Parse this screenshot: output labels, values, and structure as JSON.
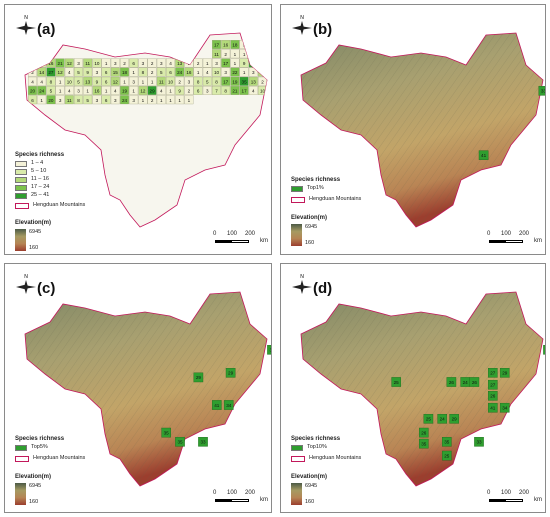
{
  "panels": [
    {
      "id": "a",
      "label": "(a)",
      "legend": {
        "title": "Species richness",
        "classes": [
          {
            "label": "1 – 4",
            "color": "#f4f2d8"
          },
          {
            "label": "5 – 10",
            "color": "#d9ebaa"
          },
          {
            "label": "11 – 16",
            "color": "#b3d97a"
          },
          {
            "label": "17 – 24",
            "color": "#7cc24c"
          },
          {
            "label": "25 – 41",
            "color": "#2f9e2f"
          }
        ]
      },
      "cell_values": [
        "17",
        "16",
        "18",
        "3",
        "1",
        "13",
        "11",
        "2",
        "1",
        "1",
        "16",
        "1",
        "5",
        "10",
        "16",
        "21",
        "12",
        "3",
        "11",
        "10",
        "1",
        "3",
        "2",
        "6",
        "3",
        "2",
        "3",
        "4",
        "13",
        "1",
        "2",
        "1",
        "3",
        "17",
        "1",
        "9",
        "25",
        "1",
        "2",
        "14",
        "27",
        "12",
        "4",
        "5",
        "9",
        "3",
        "6",
        "15",
        "18",
        "1",
        "8",
        "2",
        "5",
        "6",
        "24",
        "16",
        "1",
        "4",
        "10",
        "3",
        "22",
        "1",
        "3",
        "13",
        "4",
        "4",
        "8",
        "1",
        "10",
        "5",
        "13",
        "9",
        "6",
        "12",
        "1",
        "3",
        "1",
        "1",
        "11",
        "10",
        "2",
        "3",
        "8",
        "5",
        "8",
        "17",
        "19",
        "35",
        "13",
        "2",
        "20",
        "24",
        "5",
        "1",
        "4",
        "3",
        "1",
        "16",
        "1",
        "4",
        "19",
        "1",
        "12",
        "29",
        "4",
        "1",
        "9",
        "2",
        "6",
        "3",
        "7",
        "8",
        "21",
        "17",
        "4",
        "10",
        "6",
        "1",
        "20",
        "3",
        "11",
        "8",
        "5",
        "3",
        "6",
        "3",
        "24",
        "3",
        "1",
        "2",
        "1",
        "1",
        "1",
        "1"
      ]
    },
    {
      "id": "b",
      "label": "(b)",
      "legend": {
        "title": "Species richness",
        "classes": [
          {
            "label": "Top1%",
            "color": "#2f9e2f"
          }
        ]
      },
      "cells": [
        {
          "value": "33",
          "gx": 26.5,
          "gy": 6
        },
        {
          "value": "41",
          "gx": 20,
          "gy": 13
        }
      ]
    },
    {
      "id": "c",
      "label": "(c)",
      "legend": {
        "title": "Species richness",
        "classes": [
          {
            "label": "Top5%",
            "color": "#2f9e2f"
          }
        ]
      },
      "cells": [
        {
          "value": "32",
          "gx": 27,
          "gy": 6
        },
        {
          "value": "33",
          "gx": 28.3,
          "gy": 6
        },
        {
          "value": "29",
          "gx": 19,
          "gy": 9
        },
        {
          "value": "29",
          "gx": 22.5,
          "gy": 8.5
        },
        {
          "value": "41",
          "gx": 21,
          "gy": 12
        },
        {
          "value": "34",
          "gx": 22.3,
          "gy": 12
        },
        {
          "value": "35",
          "gx": 15.5,
          "gy": 15
        },
        {
          "value": "35",
          "gx": 17,
          "gy": 16
        },
        {
          "value": "33",
          "gx": 19.5,
          "gy": 16
        }
      ]
    },
    {
      "id": "d",
      "label": "(d)",
      "legend": {
        "title": "Species richness",
        "classes": [
          {
            "label": "Top10%",
            "color": "#2f9e2f"
          }
        ]
      },
      "cells": [
        {
          "value": "32",
          "gx": 27,
          "gy": 6
        },
        {
          "value": "33",
          "gx": 28.3,
          "gy": 6
        },
        {
          "value": "25",
          "gx": 10.5,
          "gy": 9.5
        },
        {
          "value": "26",
          "gx": 16.5,
          "gy": 9.5
        },
        {
          "value": "24",
          "gx": 18,
          "gy": 9.5
        },
        {
          "value": "26",
          "gx": 19,
          "gy": 9.5
        },
        {
          "value": "27",
          "gx": 21,
          "gy": 8.5
        },
        {
          "value": "29",
          "gx": 22.3,
          "gy": 8.5
        },
        {
          "value": "27",
          "gx": 21,
          "gy": 9.8
        },
        {
          "value": "26",
          "gx": 21,
          "gy": 11
        },
        {
          "value": "41",
          "gx": 21,
          "gy": 12.3
        },
        {
          "value": "34",
          "gx": 22.3,
          "gy": 12.3
        },
        {
          "value": "25",
          "gx": 14,
          "gy": 13.5
        },
        {
          "value": "24",
          "gx": 15.5,
          "gy": 13.5
        },
        {
          "value": "29",
          "gx": 16.8,
          "gy": 13.5
        },
        {
          "value": "26",
          "gx": 13.5,
          "gy": 15
        },
        {
          "value": "35",
          "gx": 13.5,
          "gy": 16.2
        },
        {
          "value": "35",
          "gx": 16,
          "gy": 16
        },
        {
          "value": "25",
          "gx": 16,
          "gy": 17.5
        },
        {
          "value": "33",
          "gx": 19.5,
          "gy": 16
        }
      ]
    }
  ],
  "common": {
    "north_label": "N",
    "boundary_label": "Hengduan Mountains",
    "elevation_title": "Elevation(m)",
    "elevation_high": "6945",
    "elevation_low": "160",
    "elevation_colors": [
      "#4c5a46",
      "#a59a62",
      "#b58454",
      "#9b3e2e"
    ],
    "boundary_color": "#c2185b",
    "scale_ticks": [
      "0",
      "100",
      "200"
    ],
    "scale_unit": "km"
  }
}
